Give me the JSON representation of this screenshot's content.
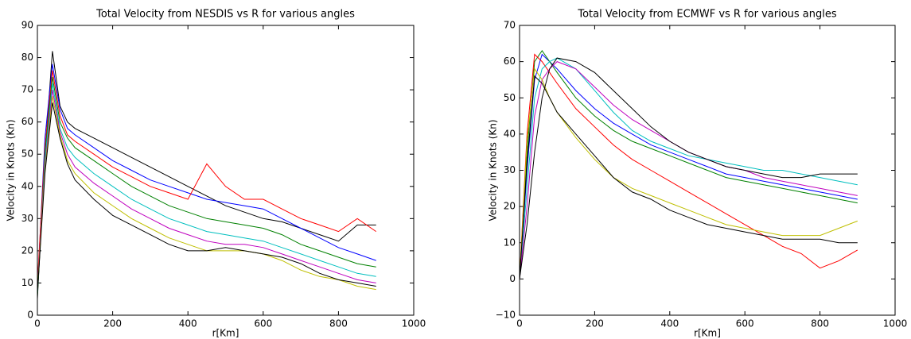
{
  "chart_data": [
    {
      "type": "line",
      "title": "Total Velocity from NESDIS vs R for various angles",
      "xlabel": "r[Km]",
      "ylabel": "Velocity in Knots (Kn)",
      "x": [
        0,
        20,
        40,
        60,
        80,
        100,
        150,
        200,
        250,
        300,
        350,
        400,
        450,
        500,
        550,
        600,
        650,
        700,
        750,
        800,
        850,
        900
      ],
      "xlim": [
        0,
        1000
      ],
      "xticks": [
        0,
        200,
        400,
        600,
        800,
        1000
      ],
      "ylim": [
        0,
        90
      ],
      "yticks": [
        0,
        10,
        20,
        30,
        40,
        50,
        60,
        70,
        80,
        90
      ],
      "series": [
        {
          "color": "#000000",
          "values": [
            5,
            50,
            82,
            65,
            60,
            58,
            55,
            52,
            49,
            46,
            43,
            40,
            37,
            34,
            32,
            30,
            29,
            27,
            25,
            23,
            28,
            28
          ]
        },
        {
          "color": "#0000ff",
          "values": [
            8,
            55,
            78,
            64,
            58,
            56,
            52,
            48,
            45,
            42,
            40,
            38,
            36,
            35,
            34,
            33,
            30,
            27,
            24,
            21,
            19,
            17
          ]
        },
        {
          "color": "#ff0000",
          "values": [
            10,
            52,
            76,
            62,
            56,
            54,
            50,
            46,
            43,
            40,
            38,
            36,
            47,
            40,
            36,
            36,
            33,
            30,
            28,
            26,
            30,
            26
          ]
        },
        {
          "color": "#008000",
          "values": [
            6,
            50,
            74,
            60,
            55,
            52,
            48,
            44,
            40,
            37,
            34,
            32,
            30,
            29,
            28,
            27,
            25,
            22,
            20,
            18,
            16,
            15
          ]
        },
        {
          "color": "#00bfbf",
          "values": [
            7,
            48,
            72,
            58,
            52,
            49,
            44,
            40,
            36,
            33,
            30,
            28,
            26,
            25,
            24,
            23,
            21,
            19,
            17,
            15,
            13,
            12
          ]
        },
        {
          "color": "#bf00bf",
          "values": [
            9,
            46,
            70,
            57,
            50,
            46,
            41,
            37,
            33,
            30,
            27,
            25,
            23,
            22,
            22,
            21,
            19,
            17,
            15,
            13,
            11,
            10
          ]
        },
        {
          "color": "#bfbf00",
          "values": [
            8,
            45,
            68,
            56,
            48,
            44,
            38,
            34,
            30,
            27,
            24,
            22,
            20,
            20,
            20,
            19,
            17,
            14,
            12,
            11,
            9,
            8
          ]
        },
        {
          "color": "#000000",
          "values": [
            7,
            44,
            66,
            55,
            47,
            42,
            36,
            31,
            28,
            25,
            22,
            20,
            20,
            21,
            20,
            19,
            18,
            16,
            13,
            11,
            10,
            9
          ]
        }
      ]
    },
    {
      "type": "line",
      "title": "Total Velocity from ECMWF vs R for various angles",
      "xlabel": "r[Km]",
      "ylabel": "Velocity in Knots (Kn)",
      "x": [
        0,
        20,
        40,
        60,
        80,
        100,
        150,
        200,
        250,
        300,
        350,
        400,
        450,
        500,
        550,
        600,
        650,
        700,
        750,
        800,
        850,
        900
      ],
      "xlim": [
        0,
        1000
      ],
      "xticks": [
        0,
        200,
        400,
        600,
        800,
        1000
      ],
      "ylim": [
        -10,
        70
      ],
      "yticks": [
        {
          "value": -10,
          "label": "−10"
        },
        0,
        10,
        20,
        30,
        40,
        50,
        60,
        70
      ],
      "series": [
        {
          "color": "#0000ff",
          "values": [
            0,
            30,
            55,
            62,
            60,
            58,
            52,
            47,
            43,
            40,
            37,
            35,
            33,
            31,
            29,
            28,
            27,
            26,
            25,
            24,
            23,
            22
          ]
        },
        {
          "color": "#008000",
          "values": [
            0,
            35,
            60,
            63,
            60,
            57,
            50,
            45,
            41,
            38,
            36,
            34,
            32,
            30,
            28,
            27,
            26,
            25,
            24,
            23,
            22,
            21
          ]
        },
        {
          "color": "#ff0000",
          "values": [
            0,
            40,
            62,
            60,
            57,
            54,
            47,
            42,
            37,
            33,
            30,
            27,
            24,
            21,
            18,
            15,
            12,
            9,
            7,
            3,
            5,
            8
          ]
        },
        {
          "color": "#00bfbf",
          "values": [
            0,
            25,
            50,
            58,
            60,
            61,
            58,
            52,
            46,
            41,
            38,
            36,
            34,
            33,
            32,
            31,
            30,
            30,
            29,
            28,
            27,
            26
          ]
        },
        {
          "color": "#bf00bf",
          "values": [
            0,
            20,
            45,
            55,
            58,
            60,
            58,
            53,
            48,
            44,
            41,
            38,
            35,
            33,
            31,
            30,
            28,
            27,
            26,
            25,
            24,
            23
          ]
        },
        {
          "color": "#bfbf00",
          "values": [
            0,
            38,
            58,
            55,
            50,
            46,
            39,
            33,
            28,
            25,
            23,
            21,
            19,
            17,
            15,
            14,
            13,
            12,
            12,
            12,
            14,
            16
          ]
        },
        {
          "color": "#000000",
          "values": [
            0,
            15,
            35,
            50,
            58,
            61,
            60,
            57,
            52,
            47,
            42,
            38,
            35,
            33,
            31,
            30,
            29,
            28,
            28,
            29,
            29,
            29
          ]
        },
        {
          "color": "#000000",
          "values": [
            0,
            32,
            56,
            54,
            50,
            46,
            40,
            34,
            28,
            24,
            22,
            19,
            17,
            15,
            14,
            13,
            12,
            11,
            11,
            11,
            10,
            10
          ]
        }
      ]
    }
  ]
}
